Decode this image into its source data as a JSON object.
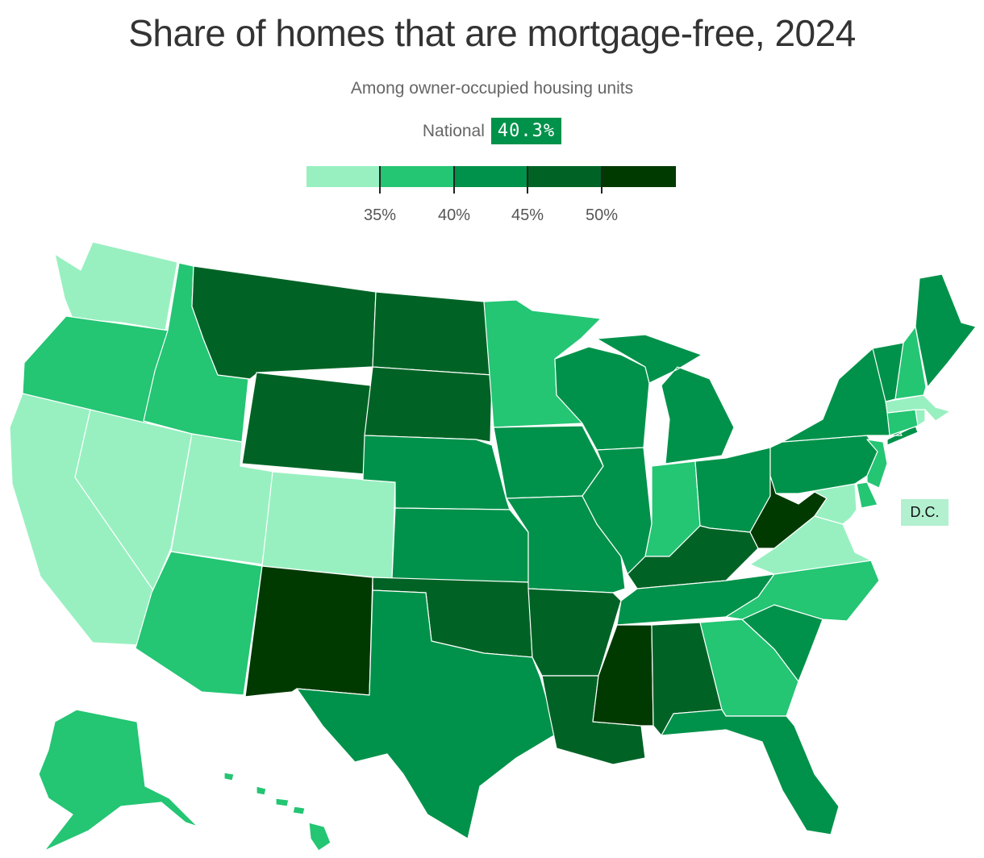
{
  "title": "Share of homes that are mortgage-free, 2024",
  "subtitle": "Among owner-occupied housing units",
  "national": {
    "label": "National",
    "value": "40.3%"
  },
  "legend": {
    "colors": [
      "#98f0c0",
      "#24c573",
      "#00924a",
      "#006325",
      "#003a00"
    ],
    "thresholds": [
      "35%",
      "40%",
      "45%",
      "50%"
    ]
  },
  "colors": {
    "c1": "#98f0c0",
    "c2": "#24c573",
    "c3": "#00924a",
    "c4": "#006325",
    "c5": "#003a00",
    "dc": "#b2f0d0"
  },
  "dc_label": "D.C.",
  "states": {
    "WA": "c1",
    "OR": "c2",
    "CA": "c1",
    "NV": "c1",
    "ID": "c2",
    "MT": "c4",
    "WY": "c4",
    "UT": "c1",
    "CO": "c1",
    "AZ": "c2",
    "NM": "c5",
    "ND": "c4",
    "SD": "c4",
    "NE": "c3",
    "KS": "c3",
    "OK": "c4",
    "TX": "c3",
    "MN": "c2",
    "IA": "c3",
    "MO": "c3",
    "AR": "c4",
    "LA": "c4",
    "WI": "c3",
    "IL": "c3",
    "MI": "c3",
    "IN": "c2",
    "OH": "c3",
    "KY": "c4",
    "TN": "c3",
    "MS": "c5",
    "AL": "c4",
    "GA": "c2",
    "FL": "c3",
    "SC": "c3",
    "NC": "c2",
    "VA": "c1",
    "WV": "c5",
    "MD": "c1",
    "DE": "c2",
    "PA": "c3",
    "NJ": "c2",
    "NY": "c3",
    "CT": "c2",
    "RI": "c1",
    "MA": "c1",
    "VT": "c3",
    "NH": "c2",
    "ME": "c3",
    "AK": "c2",
    "HI": "c2"
  }
}
